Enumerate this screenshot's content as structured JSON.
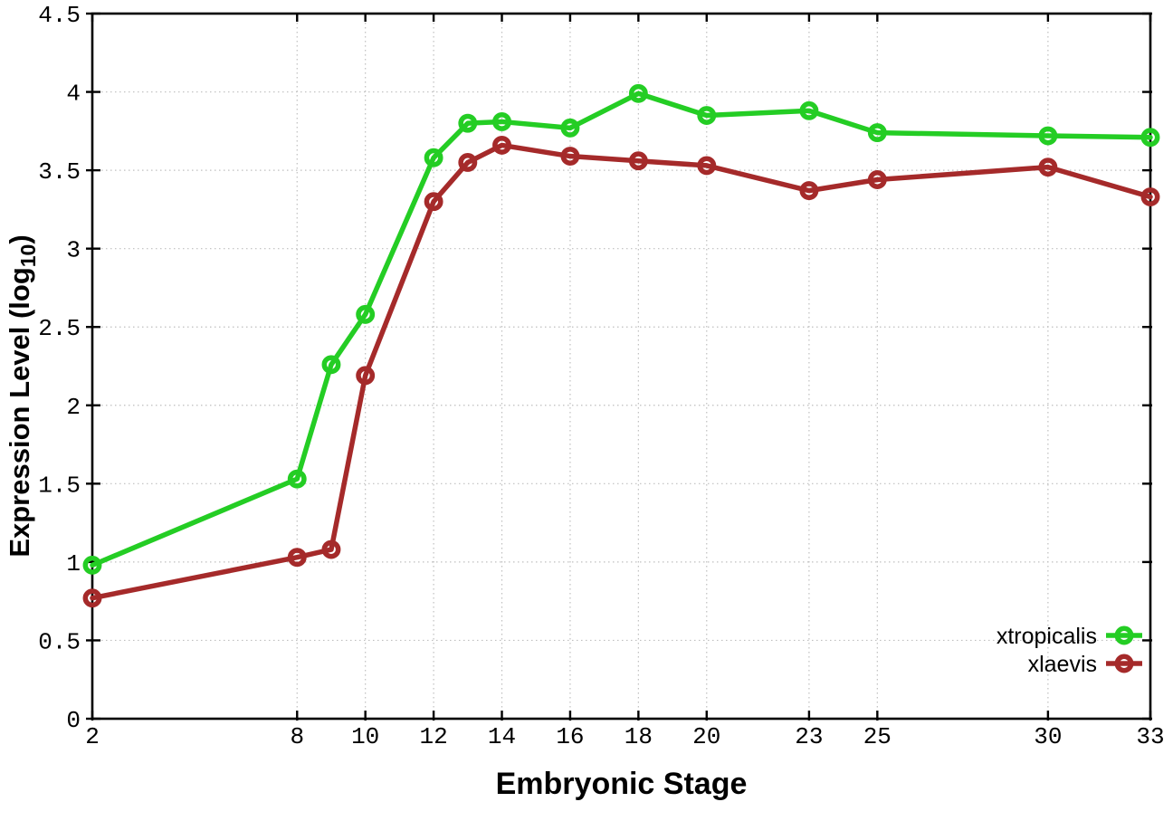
{
  "chart_data": {
    "type": "line",
    "title": "",
    "xlabel": "Embryonic Stage",
    "ylabel": "Expression Level (log10)",
    "ylabel_parts": {
      "pre": "Expression Level (log",
      "sub": "10",
      "post": ")"
    },
    "x": [
      2,
      8,
      9,
      10,
      12,
      13,
      14,
      16,
      18,
      20,
      23,
      25,
      30,
      33
    ],
    "series": [
      {
        "name": "xtropicalis",
        "color": "#24cd24",
        "values": [
          0.98,
          1.53,
          2.26,
          2.58,
          3.58,
          3.8,
          3.81,
          3.77,
          3.99,
          3.85,
          3.88,
          3.74,
          3.72,
          3.71
        ]
      },
      {
        "name": "xlaevis",
        "color": "#a52a2a",
        "values": [
          0.77,
          1.03,
          1.08,
          2.19,
          3.3,
          3.55,
          3.66,
          3.59,
          3.56,
          3.53,
          3.37,
          3.44,
          3.52,
          3.33
        ]
      }
    ],
    "xlim": [
      2,
      33
    ],
    "ylim": [
      0,
      4.5
    ],
    "xticks": [
      2,
      8,
      10,
      12,
      14,
      16,
      18,
      20,
      23,
      25,
      30,
      33
    ],
    "yticks": [
      0,
      0.5,
      1,
      1.5,
      2,
      2.5,
      3,
      3.5,
      4,
      4.5
    ],
    "grid": true,
    "grid_style": "dotted",
    "marker": "open-circle",
    "legend_position": "inside-bottom-right",
    "legend_entries": [
      "xtropicalis",
      "xlaevis"
    ]
  },
  "colors": {
    "background": "#ffffff",
    "axis": "#000000",
    "grid": "#bfbfbf",
    "text": "#000000"
  }
}
